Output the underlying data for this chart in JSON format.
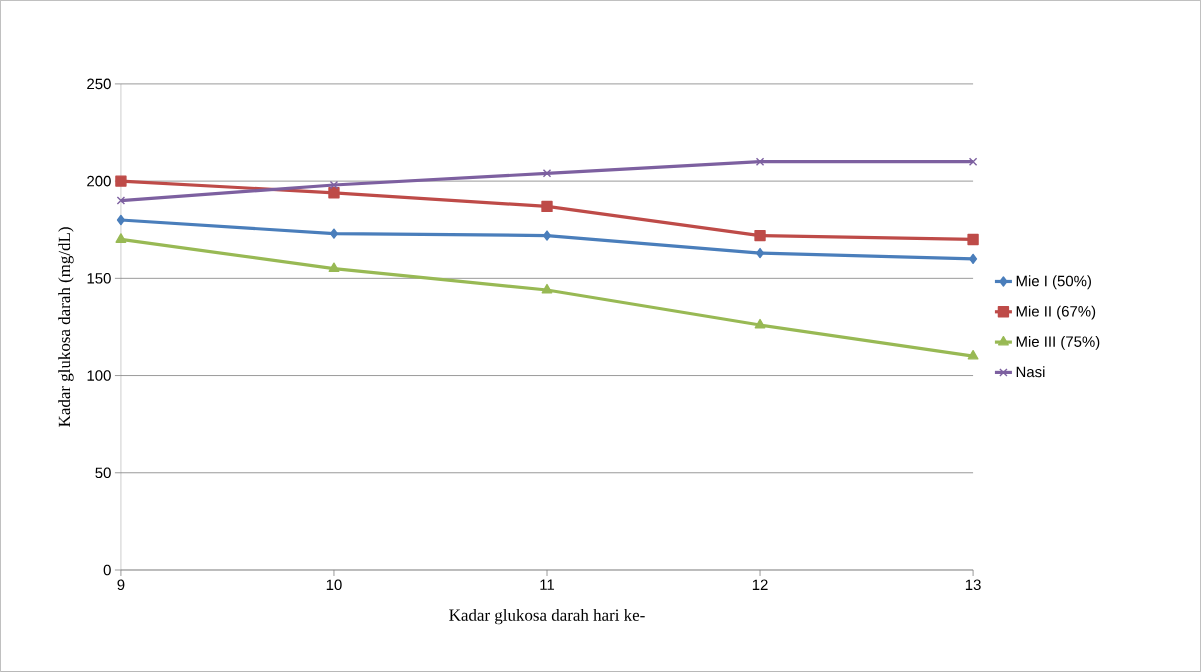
{
  "chart_data": {
    "type": "line",
    "xlabel": "Kadar glukosa darah hari ke-",
    "ylabel": "Kadar glukosa darah (mg/dL)",
    "categories": [
      "9",
      "10",
      "11",
      "12",
      "13"
    ],
    "series": [
      {
        "name": "Mie I (50%)",
        "color": "#4a7ebb",
        "marker": "diamond",
        "values": [
          180,
          173,
          172,
          163,
          160
        ]
      },
      {
        "name": "Mie II (67%)",
        "color": "#be4b48",
        "marker": "square",
        "values": [
          200,
          194,
          187,
          172,
          170
        ]
      },
      {
        "name": "Mie III (75%)",
        "color": "#98b954",
        "marker": "triangle",
        "values": [
          170,
          155,
          144,
          126,
          110
        ]
      },
      {
        "name": "Nasi",
        "color": "#7d60a0",
        "marker": "cross",
        "values": [
          190,
          198,
          204,
          210,
          210
        ]
      }
    ],
    "ylim": [
      0,
      250
    ],
    "yticks": [
      0,
      50,
      100,
      150,
      200,
      250
    ],
    "grid": "y",
    "legend": "right",
    "line_style": "solid"
  }
}
